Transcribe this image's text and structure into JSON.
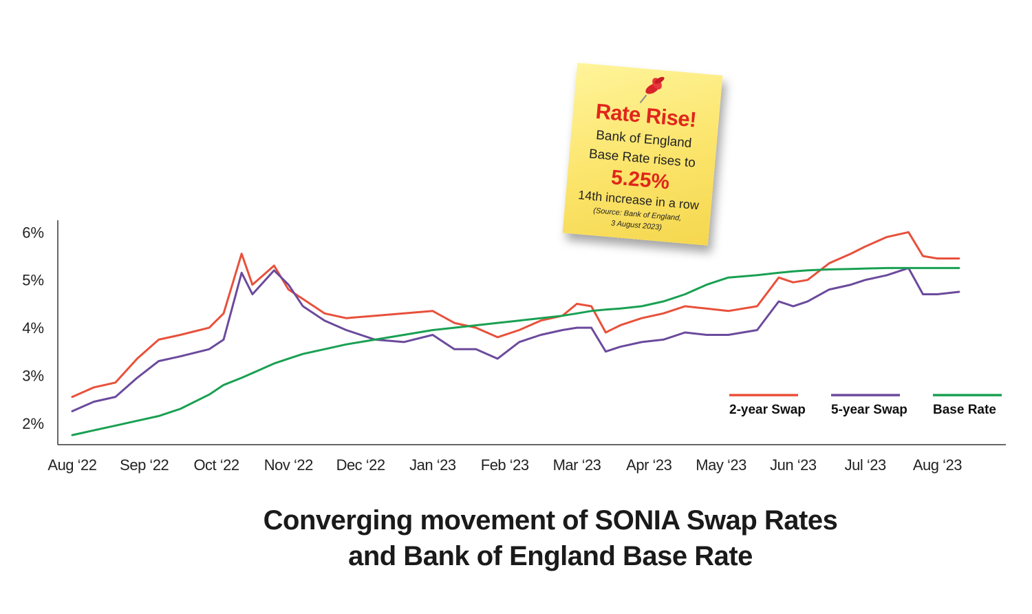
{
  "chart_data": {
    "type": "line",
    "title": "Converging movement of SONIA Swap Rates and Bank of England Base Rate",
    "title_lines": [
      "Converging movement of SONIA Swap Rates",
      "and Bank of England Base Rate"
    ],
    "x_labels": [
      "Aug ‘22",
      "Sep ‘22",
      "Oct ‘22",
      "Nov ‘22",
      "Dec ‘22",
      "Jan ‘23",
      "Feb ‘23",
      "Mar ‘23",
      "Apr ‘23",
      "May ‘23",
      "Jun ‘23",
      "Jul ‘23",
      "Aug ‘23"
    ],
    "y_ticks": [
      "6%",
      "5%",
      "4%",
      "3%",
      "2%"
    ],
    "y_tick_values": [
      6,
      5,
      4,
      3,
      2
    ],
    "ylim": [
      1.55,
      6.25
    ],
    "xlim": [
      -0.2,
      12.95
    ],
    "x": [
      0.0,
      0.3,
      0.6,
      0.9,
      1.2,
      1.5,
      1.9,
      2.1,
      2.35,
      2.5,
      2.8,
      3.0,
      3.2,
      3.5,
      3.8,
      4.2,
      4.6,
      5.0,
      5.3,
      5.6,
      5.9,
      6.2,
      6.5,
      6.8,
      7.0,
      7.2,
      7.4,
      7.6,
      7.9,
      8.2,
      8.5,
      8.8,
      9.1,
      9.5,
      9.8,
      10.0,
      10.2,
      10.5,
      10.8,
      11.0,
      11.3,
      11.6,
      11.8,
      12.0,
      12.3
    ],
    "series": [
      {
        "name": "2-year Swap",
        "color": "#e8503a",
        "values": [
          2.55,
          2.75,
          2.85,
          3.35,
          3.75,
          3.85,
          4.0,
          4.3,
          5.55,
          4.9,
          5.3,
          4.8,
          4.6,
          4.3,
          4.2,
          4.25,
          4.3,
          4.35,
          4.1,
          4.0,
          3.8,
          3.95,
          4.15,
          4.25,
          4.5,
          4.45,
          3.9,
          4.05,
          4.2,
          4.3,
          4.45,
          4.4,
          4.35,
          4.45,
          5.05,
          4.95,
          5.0,
          5.35,
          5.55,
          5.7,
          5.9,
          6.0,
          5.5,
          5.45,
          5.45
        ]
      },
      {
        "name": "5-year Swap",
        "color": "#6b4a9c",
        "values": [
          2.25,
          2.45,
          2.55,
          2.95,
          3.3,
          3.4,
          3.55,
          3.75,
          5.15,
          4.7,
          5.2,
          4.9,
          4.45,
          4.15,
          3.95,
          3.75,
          3.7,
          3.85,
          3.55,
          3.55,
          3.35,
          3.7,
          3.85,
          3.95,
          4.0,
          4.0,
          3.5,
          3.6,
          3.7,
          3.75,
          3.9,
          3.85,
          3.85,
          3.95,
          4.55,
          4.45,
          4.55,
          4.8,
          4.9,
          5.0,
          5.1,
          5.25,
          4.7,
          4.7,
          4.75
        ]
      },
      {
        "name": "Base Rate",
        "color": "#19a052",
        "values": [
          1.75,
          1.85,
          1.95,
          2.05,
          2.15,
          2.3,
          2.6,
          2.8,
          2.95,
          3.05,
          3.25,
          3.35,
          3.45,
          3.55,
          3.65,
          3.75,
          3.85,
          3.95,
          4.0,
          4.05,
          4.1,
          4.15,
          4.2,
          4.25,
          4.3,
          4.35,
          4.38,
          4.4,
          4.45,
          4.55,
          4.7,
          4.9,
          5.05,
          5.1,
          5.15,
          5.18,
          5.2,
          5.22,
          5.23,
          5.24,
          5.25,
          5.25,
          5.25,
          5.25,
          5.25
        ]
      }
    ],
    "legend": [
      {
        "label": "2-year Swap",
        "color": "#e8503a"
      },
      {
        "label": "5-year Swap",
        "color": "#6b4a9c"
      },
      {
        "label": "Base Rate",
        "color": "#19a052"
      }
    ],
    "legend_position": "bottom-right",
    "grid": false
  },
  "note": {
    "headline": "Rate Rise!",
    "line1": "Bank of England",
    "line2": "Base Rate rises to",
    "big": "5.25%",
    "line3": "14th increase in a row",
    "source1": "(Source: Bank of England,",
    "source2": "3 August 2023)"
  }
}
